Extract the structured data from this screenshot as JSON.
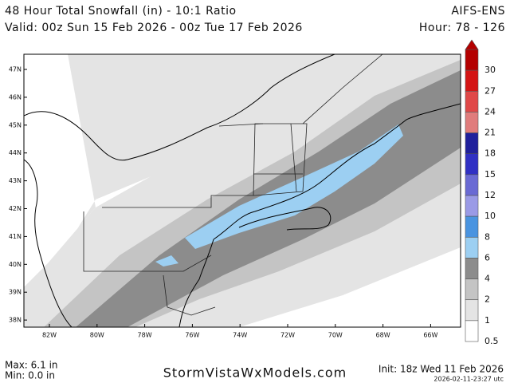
{
  "header": {
    "title": "48 Hour Total Snowfall (in) - 10:1 Ratio",
    "valid": "Valid: 00z Sun 15 Feb 2026 - 00z Tue 17 Feb 2026",
    "model": "AIFS-ENS",
    "hour": "Hour: 78 - 126"
  },
  "map": {
    "lat_labels": [
      "47N",
      "46N",
      "45N",
      "44N",
      "43N",
      "42N",
      "41N",
      "40N",
      "39N",
      "38N"
    ],
    "lon_labels": [
      "82W",
      "80W",
      "78W",
      "76W",
      "74W",
      "72W",
      "70W",
      "68W",
      "66W"
    ]
  },
  "colorbar": {
    "levels": [
      {
        "label": "30",
        "color": "#b40000"
      },
      {
        "label": "27",
        "color": "#d41414"
      },
      {
        "label": "24",
        "color": "#e04848"
      },
      {
        "label": "21",
        "color": "#e07c7c"
      },
      {
        "label": "18",
        "color": "#20209c"
      },
      {
        "label": "15",
        "color": "#3030c4"
      },
      {
        "label": "12",
        "color": "#6a6ad4"
      },
      {
        "label": "10",
        "color": "#9a9ae6"
      },
      {
        "label": "8",
        "color": "#4a94e0"
      },
      {
        "label": "6",
        "color": "#9ccff2"
      },
      {
        "label": "4",
        "color": "#8c8c8c"
      },
      {
        "label": "2",
        "color": "#c4c4c4"
      },
      {
        "label": "1",
        "color": "#e4e4e4"
      },
      {
        "label": "0.5",
        "color": "#ffffff"
      }
    ]
  },
  "footer": {
    "max": "Max: 6.1 in",
    "min": "Min: 0.0 in",
    "site": "StormVistaWxModels.com",
    "init": "Init: 18z Wed 11 Feb 2026",
    "timestamp": "2026-02-11-23:27 utc"
  }
}
